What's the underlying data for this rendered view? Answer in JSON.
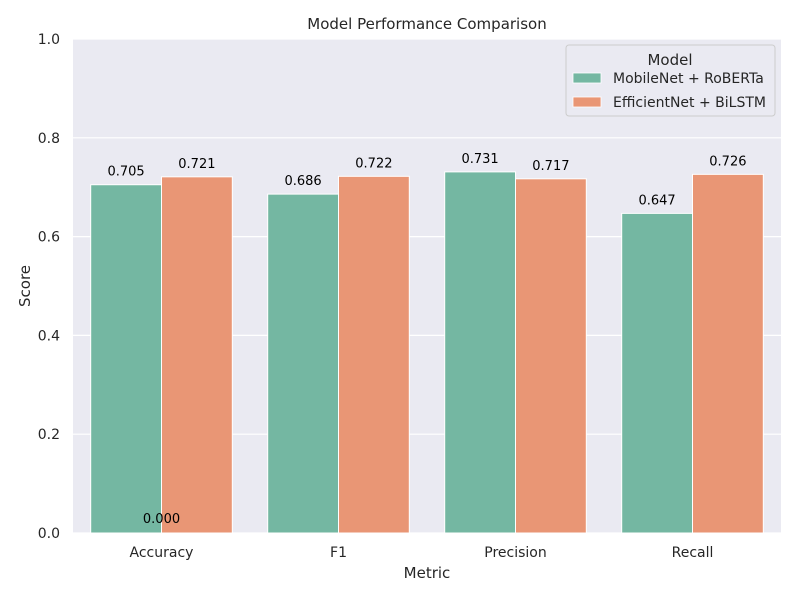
{
  "chart_data": {
    "type": "bar",
    "title": "Model Performance Comparison",
    "xlabel": "Metric",
    "ylabel": "Score",
    "ylim": [
      0,
      1.0
    ],
    "yticks": [
      "0.0",
      "0.2",
      "0.4",
      "0.6",
      "0.8",
      "1.0"
    ],
    "categories": [
      "Accuracy",
      "F1",
      "Precision",
      "Recall"
    ],
    "series": [
      {
        "name": "MobileNet + RoBERTa",
        "color": "#74b7a2",
        "values": [
          0.705,
          0.686,
          0.731,
          0.647
        ]
      },
      {
        "name": "EfficientNet + BiLSTM",
        "color": "#e99675",
        "values": [
          0.721,
          0.722,
          0.717,
          0.726
        ]
      }
    ],
    "data_labels": [
      [
        "0.705",
        "0.686",
        "0.731",
        "0.647"
      ],
      [
        "0.721",
        "0.722",
        "0.717",
        "0.726"
      ]
    ],
    "extra_label": "0.000",
    "legend": {
      "title": "Model",
      "placement": "top-right"
    },
    "grid": true,
    "background": "#eaeaf2"
  }
}
